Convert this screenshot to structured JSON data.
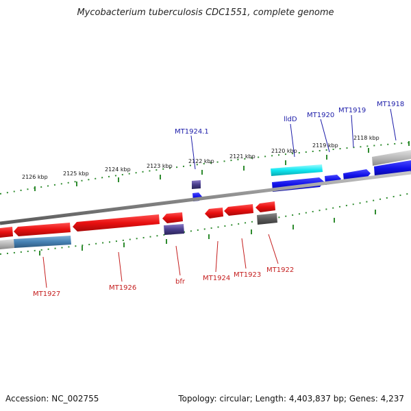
{
  "title": "Mycobacterium tuberculosis CDC1551, complete genome",
  "footer": {
    "accession": "Accession: NC_002755",
    "summary": "Topology: circular; Length: 4,403,837 bp; Genes: 4,237"
  },
  "colors": {
    "forward_gene": "#1010e8",
    "reverse_gene": "#e81010",
    "backbone": "#8a8a8a",
    "tick": "#2e8b2e",
    "fwd_label": "#1a1aa8",
    "rev_label": "#c41c1c"
  },
  "scale_labels": [
    "2126 kbp",
    "2125 kbp",
    "2124 kbp",
    "2123 kbp",
    "2122 kbp",
    "2121 kbp",
    "2120 kbp",
    "2119 kbp",
    "2118 kbp"
  ],
  "forward_genes": [
    "MT1924.1",
    "lldD",
    "MT1920",
    "MT1919",
    "MT1918"
  ],
  "reverse_genes": [
    "MT1927",
    "MT1926",
    "bfr",
    "MT1924",
    "MT1923",
    "MT1922"
  ]
}
